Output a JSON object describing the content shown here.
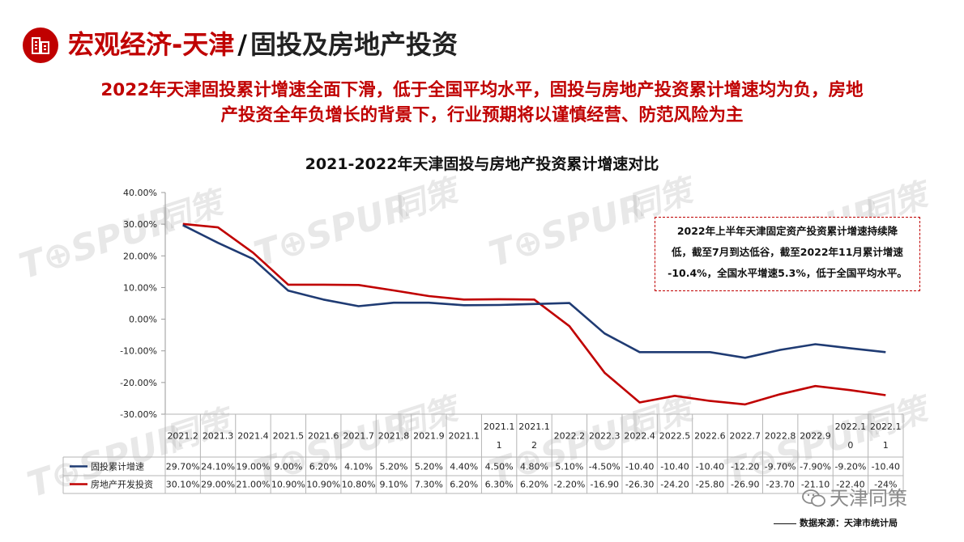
{
  "header": {
    "title_main": "宏观经济-天津",
    "title_sep": "/",
    "title_sub": "固投及房地产投资"
  },
  "subtitle": {
    "line1": "2022年天津固投累计增速全面下滑，低于全国平均水平，固投与房地产投资累计增速均为负，房地",
    "line2": "产投资全年负增长的背景下，行业预期将以谨慎经营、防范风险为主"
  },
  "watermark": {
    "brand": "T⊕SPUR",
    "cn": "同策"
  },
  "note": {
    "line1": "2022年上半年天津固定资产投资累计增速持续降",
    "line2": "低，截至7月到达低谷，截至2022年11月累计增速",
    "line3": "-10.4%，全国水平增速5.3%，低于全国平均水平。"
  },
  "footer": {
    "social": "天津同策",
    "source": "数据来源：天津市统计局"
  },
  "colors": {
    "accent": "#c00000",
    "series1": "#1f3b73",
    "series2": "#c00000"
  },
  "chart_data": {
    "type": "line",
    "title": "2021-2022年天津固投与房地产投资累计增速对比",
    "ylim": [
      -30,
      40
    ],
    "y_ticks": [
      "40.00%",
      "30.00%",
      "20.00%",
      "10.00%",
      "0.00%",
      "-10.00%",
      "-20.00%",
      "-30.00%"
    ],
    "categories": [
      [
        "2021.2"
      ],
      [
        "2021.3"
      ],
      [
        "2021.4"
      ],
      [
        "2021.5"
      ],
      [
        "2021.6"
      ],
      [
        "2021.7"
      ],
      [
        "2021.8"
      ],
      [
        "2021.9"
      ],
      [
        "2021.1"
      ],
      [
        "2021.1",
        "1"
      ],
      [
        "2021.1",
        "2"
      ],
      [
        "2022.2"
      ],
      [
        "2022.3"
      ],
      [
        "2022.4"
      ],
      [
        "2022.5"
      ],
      [
        "2022.6"
      ],
      [
        "2022.7"
      ],
      [
        "2022.8"
      ],
      [
        "2022.9"
      ],
      [
        "2022.1",
        "0"
      ],
      [
        "2022.1",
        "1"
      ]
    ],
    "legend_position": "bottom-left (data table)",
    "grid": false,
    "series": [
      {
        "name": "固投累计增速",
        "color": "#1f3b73",
        "values": [
          29.7,
          24.1,
          19.0,
          9.0,
          6.2,
          4.1,
          5.2,
          5.2,
          4.4,
          4.5,
          4.8,
          5.1,
          -4.5,
          -10.4,
          -10.4,
          -10.4,
          -12.2,
          -9.7,
          -7.9,
          -9.2,
          -10.4
        ],
        "labels": [
          "29.70%",
          "24.10%",
          "19.00%",
          "9.00%",
          "6.20%",
          "4.10%",
          "5.20%",
          "5.20%",
          "4.40%",
          "4.50%",
          "4.80%",
          "5.10%",
          "-4.50%",
          "-10.40",
          "-10.40",
          "-10.40",
          "-12.20",
          "-9.70%",
          "-7.90%",
          "-9.20%",
          "-10.40"
        ]
      },
      {
        "name": "房地产开发投资",
        "color": "#c00000",
        "values": [
          30.1,
          29.0,
          21.0,
          10.9,
          10.9,
          10.8,
          9.1,
          7.3,
          6.2,
          6.3,
          6.2,
          -2.2,
          -16.9,
          -26.3,
          -24.2,
          -25.8,
          -26.9,
          -23.7,
          -21.1,
          -22.4,
          -24
        ],
        "labels": [
          "30.10%",
          "29.00%",
          "21.00%",
          "10.90%",
          "10.90%",
          "10.80%",
          "9.10%",
          "7.30%",
          "6.20%",
          "6.30%",
          "6.20%",
          "-2.20%",
          "-16.90",
          "-26.30",
          "-24.20",
          "-25.80",
          "-26.90",
          "-23.70",
          "-21.10",
          "-22.40",
          "-24%"
        ]
      }
    ]
  }
}
